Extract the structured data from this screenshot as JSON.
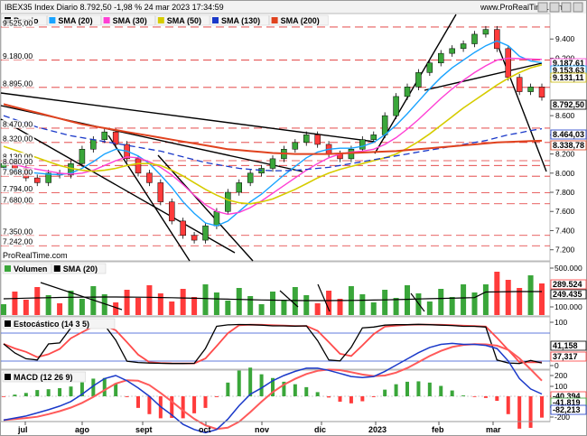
{
  "header": {
    "title": "IBEX35 Index Diario 8.792,50 -1,98 % 24 mar 2023 17:34:59",
    "site": "www.ProRealTime.com"
  },
  "price_panel": {
    "legend": [
      {
        "label": "Precio",
        "color": "#000000"
      },
      {
        "label": "SMA (20)",
        "color": "#19a3ff"
      },
      {
        "label": "SMA (30)",
        "color": "#ff3fd4"
      },
      {
        "label": "SMA (50)",
        "color": "#d6cc00"
      },
      {
        "label": "SMA (130)",
        "color": "#1a39c9"
      },
      {
        "label": "SMA (200)",
        "color": "#e0421e"
      }
    ],
    "watermark": "ProRealTime.com",
    "left_levels": [
      "9.525,00",
      "9.180,00",
      "8.895,00",
      "8.470,00",
      "8.320,00",
      "8.130,00",
      "8.080,00",
      "7.968,00",
      "7.794,00",
      "7.680,00",
      "7.350,00",
      "7.242,00"
    ],
    "right_ticks": [
      "9.400",
      "9.200",
      "9.000",
      "8.600",
      "8.400",
      "8.200",
      "8.000",
      "7.800",
      "7.600",
      "7.400",
      "7.200"
    ],
    "badges": [
      {
        "label": "9.187,61",
        "color": "#ff3fd4"
      },
      {
        "label": "9.153,63",
        "color": "#19a3ff"
      },
      {
        "label": "9.131,11",
        "color": "#c9b800"
      },
      {
        "label": "8.792,50",
        "color": "#000000"
      },
      {
        "label": "8.464,03",
        "color": "#1a39c9"
      },
      {
        "label": "8.338,78",
        "color": "#e0421e"
      }
    ]
  },
  "volume_panel": {
    "legend": [
      {
        "label": "Volumen",
        "color": "#3aa63a"
      },
      {
        "label": "SMA (20)",
        "color": "#000000"
      }
    ],
    "right_ticks": [
      "500.000",
      "100.000"
    ],
    "badges": [
      {
        "label": "289.524",
        "color": "#ff3b3b"
      },
      {
        "label": "249.435",
        "color": "#000000"
      }
    ]
  },
  "stoch_panel": {
    "legend": [
      {
        "label": "Estocástico (14 3 5)",
        "color": "#000000"
      }
    ],
    "right_ticks": [
      "100",
      "0"
    ],
    "badges": [
      {
        "label": "41,158",
        "color": "#000000"
      },
      {
        "label": "37,317",
        "color": "#ff3b3b"
      }
    ]
  },
  "macd_panel": {
    "legend": [
      {
        "label": "MACD (12 26 9)",
        "color": "#000000"
      }
    ],
    "right_ticks": [
      "200",
      "100",
      "0",
      "-100",
      "-200"
    ],
    "badges": [
      {
        "label": "-40,394",
        "color": "#ff3b3b"
      },
      {
        "label": "-41,819",
        "color": "#3aa63a"
      },
      {
        "label": "-82,213",
        "color": "#1a39c9"
      }
    ]
  },
  "time_axis": [
    "jul",
    "ago",
    "sept",
    "oct",
    "nov",
    "dic",
    "2023",
    "feb",
    "mar"
  ],
  "colors": {
    "up": "#3aa63a",
    "down": "#ff3b3b",
    "grid": "#e03030"
  },
  "chart_data": {
    "type": "line",
    "title": "IBEX35 Index Diario",
    "xlabel": "",
    "ylabel": "",
    "x_labels": [
      "jul",
      "ago",
      "sept",
      "oct",
      "nov",
      "dic",
      "2023",
      "feb",
      "mar"
    ],
    "ylim": [
      7150,
      9600
    ],
    "series": [
      {
        "name": "Precio",
        "values": [
          8100,
          8050,
          7950,
          7900,
          8000,
          7980,
          8100,
          8250,
          8350,
          8430,
          8300,
          8150,
          8000,
          7900,
          7700,
          7500,
          7350,
          7300,
          7450,
          7600,
          7800,
          7900,
          8000,
          8050,
          8150,
          8250,
          8320,
          8400,
          8300,
          8200,
          8150,
          8250,
          8350,
          8400,
          8600,
          8800,
          8900,
          9050,
          9150,
          9250,
          9300,
          9350,
          9450,
          9500,
          9300,
          9000,
          8850,
          8900,
          8792
        ]
      },
      {
        "name": "SMA (20)",
        "values": [
          8050,
          8030,
          8010,
          8000,
          7990,
          7985,
          8000,
          8050,
          8120,
          8200,
          8250,
          8230,
          8180,
          8100,
          7980,
          7850,
          7700,
          7580,
          7480,
          7450,
          7500,
          7600,
          7700,
          7780,
          7880,
          7980,
          8070,
          8160,
          8220,
          8250,
          8260,
          8260,
          8280,
          8320,
          8400,
          8500,
          8620,
          8750,
          8880,
          9000,
          9100,
          9180,
          9260,
          9330,
          9380,
          9330,
          9220,
          9170,
          9153
        ]
      },
      {
        "name": "SMA (30)",
        "values": [
          8120,
          8090,
          8060,
          8040,
          8020,
          8000,
          7990,
          8000,
          8030,
          8080,
          8130,
          8170,
          8160,
          8120,
          8060,
          7980,
          7880,
          7770,
          7670,
          7600,
          7570,
          7590,
          7640,
          7710,
          7790,
          7870,
          7950,
          8030,
          8100,
          8160,
          8200,
          8220,
          8230,
          8250,
          8300,
          8370,
          8460,
          8560,
          8670,
          8780,
          8880,
          8970,
          9050,
          9120,
          9180,
          9200,
          9195,
          9190,
          9187
        ]
      },
      {
        "name": "SMA (50)",
        "values": [
          8280,
          8240,
          8200,
          8160,
          8120,
          8080,
          8050,
          8030,
          8020,
          8030,
          8050,
          8080,
          8100,
          8100,
          8080,
          8030,
          7970,
          7900,
          7830,
          7770,
          7720,
          7690,
          7680,
          7700,
          7730,
          7780,
          7830,
          7890,
          7950,
          8000,
          8040,
          8070,
          8100,
          8130,
          8160,
          8200,
          8260,
          8330,
          8410,
          8500,
          8590,
          8680,
          8760,
          8840,
          8920,
          8990,
          9050,
          9100,
          9131
        ]
      },
      {
        "name": "SMA (130)",
        "values": [
          8600,
          8560,
          8520,
          8480,
          8450,
          8420,
          8390,
          8370,
          8350,
          8330,
          8310,
          8290,
          8270,
          8250,
          8230,
          8200,
          8170,
          8140,
          8110,
          8090,
          8070,
          8050,
          8040,
          8030,
          8025,
          8025,
          8030,
          8040,
          8050,
          8060,
          8080,
          8100,
          8120,
          8140,
          8160,
          8180,
          8200,
          8220,
          8240,
          8260,
          8280,
          8300,
          8320,
          8340,
          8370,
          8400,
          8420,
          8445,
          8464
        ]
      },
      {
        "name": "SMA (200)",
        "values": [
          8720,
          8690,
          8660,
          8630,
          8600,
          8570,
          8540,
          8510,
          8490,
          8470,
          8450,
          8430,
          8410,
          8390,
          8370,
          8350,
          8330,
          8310,
          8290,
          8270,
          8250,
          8240,
          8230,
          8220,
          8210,
          8205,
          8200,
          8200,
          8200,
          8200,
          8205,
          8210,
          8215,
          8220,
          8225,
          8230,
          8240,
          8250,
          8260,
          8270,
          8280,
          8290,
          8300,
          8310,
          8320,
          8325,
          8330,
          8335,
          8338
        ]
      }
    ]
  }
}
